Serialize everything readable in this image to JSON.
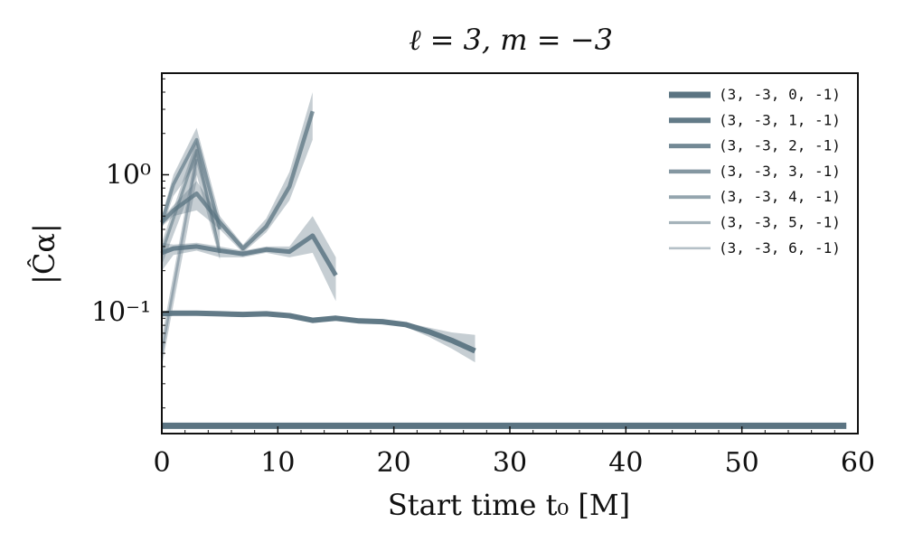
{
  "chart_data": {
    "type": "line",
    "title": "ℓ = 3, m = −3",
    "xlabel": "Start time t₀ [M]",
    "ylabel": "|Ĉα|",
    "xlim": [
      0,
      60
    ],
    "ylim": [
      0.013,
      5.5
    ],
    "yscale": "log",
    "xticks": [
      0,
      10,
      20,
      30,
      40,
      50,
      60
    ],
    "xtick_labels": [
      "0",
      "10",
      "20",
      "30",
      "40",
      "50",
      "60"
    ],
    "yticks": [
      1,
      0.1
    ],
    "ytick_labels": [
      "10⁰",
      "10⁻¹"
    ],
    "grid": false,
    "legend_position": "top-right",
    "color": "#5b7482",
    "series": [
      {
        "name": "(3, -3, 0, -1)",
        "x": [
          0,
          59
        ],
        "values": [
          0.0148,
          0.0148
        ],
        "band_low": [
          0.0146,
          0.0146
        ],
        "band_high": [
          0.015,
          0.015
        ]
      },
      {
        "name": "(3, -3, 1, -1)",
        "x": [
          0,
          1,
          3,
          5,
          7,
          9,
          11,
          13,
          15,
          17,
          19,
          21,
          23,
          25,
          27
        ],
        "values": [
          0.097,
          0.098,
          0.098,
          0.097,
          0.096,
          0.097,
          0.094,
          0.087,
          0.09,
          0.086,
          0.085,
          0.081,
          0.072,
          0.062,
          0.052
        ],
        "band_low": [
          0.096,
          0.097,
          0.097,
          0.096,
          0.095,
          0.096,
          0.092,
          0.083,
          0.087,
          0.084,
          0.083,
          0.078,
          0.066,
          0.054,
          0.043
        ],
        "band_high": [
          0.098,
          0.099,
          0.099,
          0.098,
          0.097,
          0.098,
          0.096,
          0.091,
          0.093,
          0.088,
          0.087,
          0.084,
          0.077,
          0.071,
          0.068
        ]
      },
      {
        "name": "(3, -3, 2, -1)",
        "x": [
          0,
          1,
          3,
          5,
          7,
          9,
          11,
          13,
          15
        ],
        "values": [
          0.27,
          0.29,
          0.3,
          0.28,
          0.265,
          0.285,
          0.275,
          0.36,
          0.185
        ],
        "band_low": [
          0.2,
          0.26,
          0.28,
          0.25,
          0.25,
          0.27,
          0.25,
          0.27,
          0.12
        ],
        "band_high": [
          0.32,
          0.31,
          0.32,
          0.3,
          0.28,
          0.3,
          0.3,
          0.5,
          0.25
        ]
      },
      {
        "name": "(3, -3, 3, -1)",
        "x": [
          0,
          1,
          3,
          5,
          7,
          9,
          11,
          13
        ],
        "values": [
          0.45,
          0.55,
          0.73,
          0.45,
          0.29,
          0.42,
          0.82,
          2.9
        ],
        "band_low": [
          0.42,
          0.5,
          0.55,
          0.4,
          0.27,
          0.38,
          0.65,
          1.8
        ],
        "band_high": [
          0.48,
          0.6,
          0.9,
          0.5,
          0.31,
          0.48,
          1.05,
          4.0
        ]
      },
      {
        "name": "(3, -3, 4, -1)",
        "x": [
          0,
          1,
          3,
          5
        ],
        "values": [
          0.45,
          0.85,
          1.8,
          0.4
        ],
        "band_low": [
          0.4,
          0.7,
          1.2,
          0.3
        ],
        "band_high": [
          0.5,
          1.0,
          2.2,
          0.5
        ]
      },
      {
        "name": "(3, -3, 5, -1)",
        "x": [
          0,
          3,
          5
        ],
        "values": [
          0.27,
          1.5,
          0.27
        ],
        "band_low": [
          0.22,
          1.0,
          0.24
        ],
        "band_high": [
          0.32,
          1.8,
          0.3
        ]
      },
      {
        "name": "(3, -3, 6, -1)",
        "x": [
          0,
          3
        ],
        "values": [
          0.05,
          1.3
        ],
        "band_low": [
          0.04,
          0.9
        ],
        "band_high": [
          0.065,
          1.6
        ]
      }
    ]
  }
}
